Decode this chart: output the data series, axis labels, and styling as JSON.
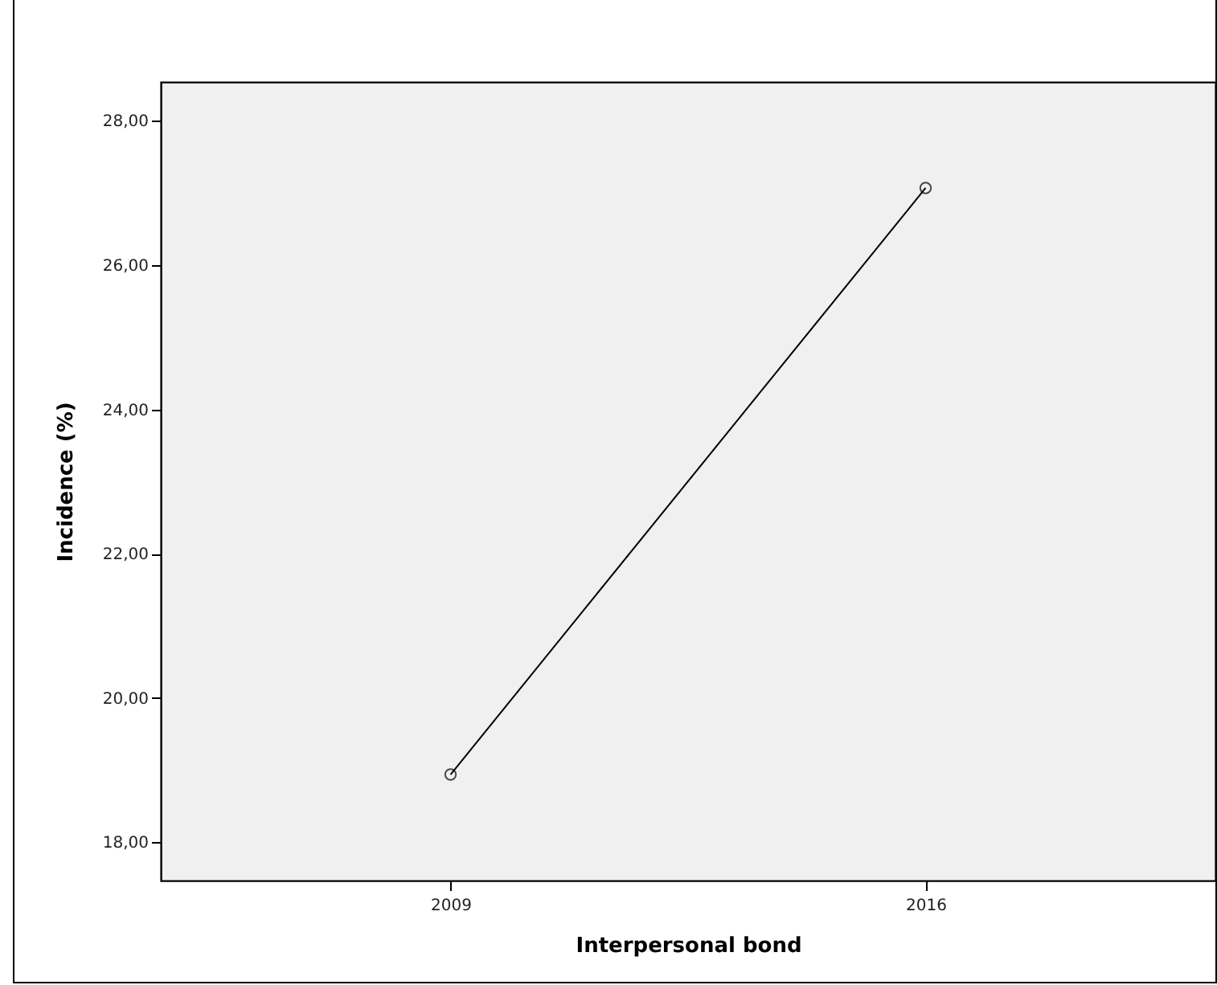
{
  "chart_data": {
    "type": "line",
    "xlabel": "Interpersonal bond",
    "ylabel": "Incidence (%)",
    "categories": [
      "2009",
      "2016"
    ],
    "series": [
      {
        "color": "#000000",
        "values": [
          18.94,
          27.07
        ]
      }
    ],
    "ylim": [
      17.47,
      28.54
    ],
    "yticks": [
      {
        "value": 18,
        "label": "18,00"
      },
      {
        "value": 20,
        "label": "20,00"
      },
      {
        "value": 22,
        "label": "22,00"
      },
      {
        "value": 24,
        "label": "24,00"
      },
      {
        "value": 26,
        "label": "26,00"
      },
      {
        "value": 28,
        "label": "28,00"
      }
    ],
    "marker": "circle",
    "grid": false,
    "legend": false
  }
}
